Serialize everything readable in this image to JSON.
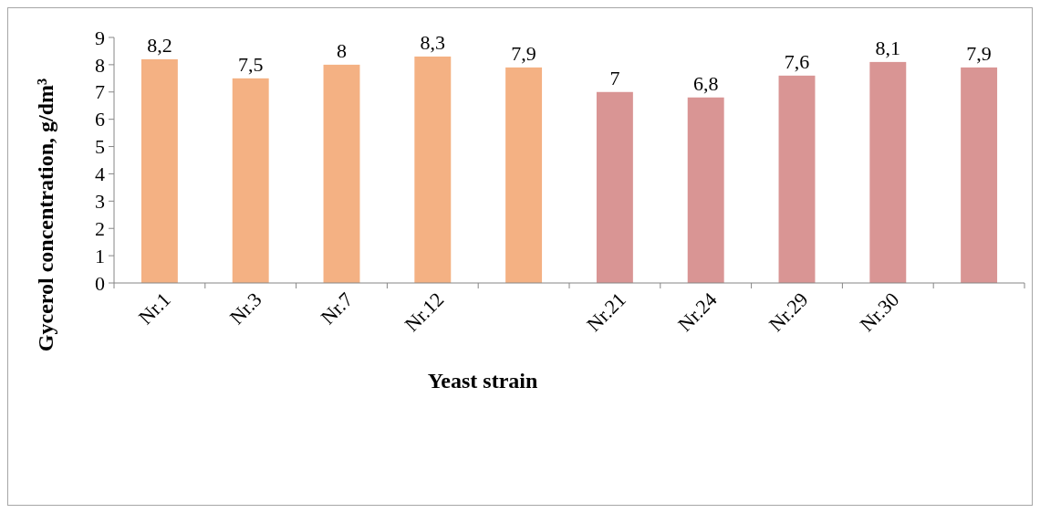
{
  "chart_data": {
    "type": "bar",
    "xlabel": "Yeast strain",
    "ylabel": "Gycerol concentration, g/dm³",
    "categories": [
      "Nr.1",
      "Nr.3",
      "Nr.7",
      "Nr.12",
      null,
      "Nr.21",
      "Nr.24",
      "Nr.29",
      "Nr.30",
      null
    ],
    "values": [
      8.2,
      7.5,
      8,
      8.3,
      7.9,
      7,
      6.8,
      7.6,
      8.1,
      7.9
    ],
    "value_labels": [
      "8,2",
      "7,5",
      "8",
      "8,3",
      "7,9",
      "7",
      "6,8",
      "7,6",
      "8,1",
      "7,9"
    ],
    "colors": [
      "#f4b183",
      "#f4b183",
      "#f4b183",
      "#f4b183",
      "#f4b183",
      "#d99594",
      "#d99594",
      "#d99594",
      "#d99594",
      "#d99594"
    ],
    "ylim": [
      0,
      9
    ],
    "yticks": [
      0,
      1,
      2,
      3,
      4,
      5,
      6,
      7,
      8,
      9
    ],
    "grid": false
  }
}
